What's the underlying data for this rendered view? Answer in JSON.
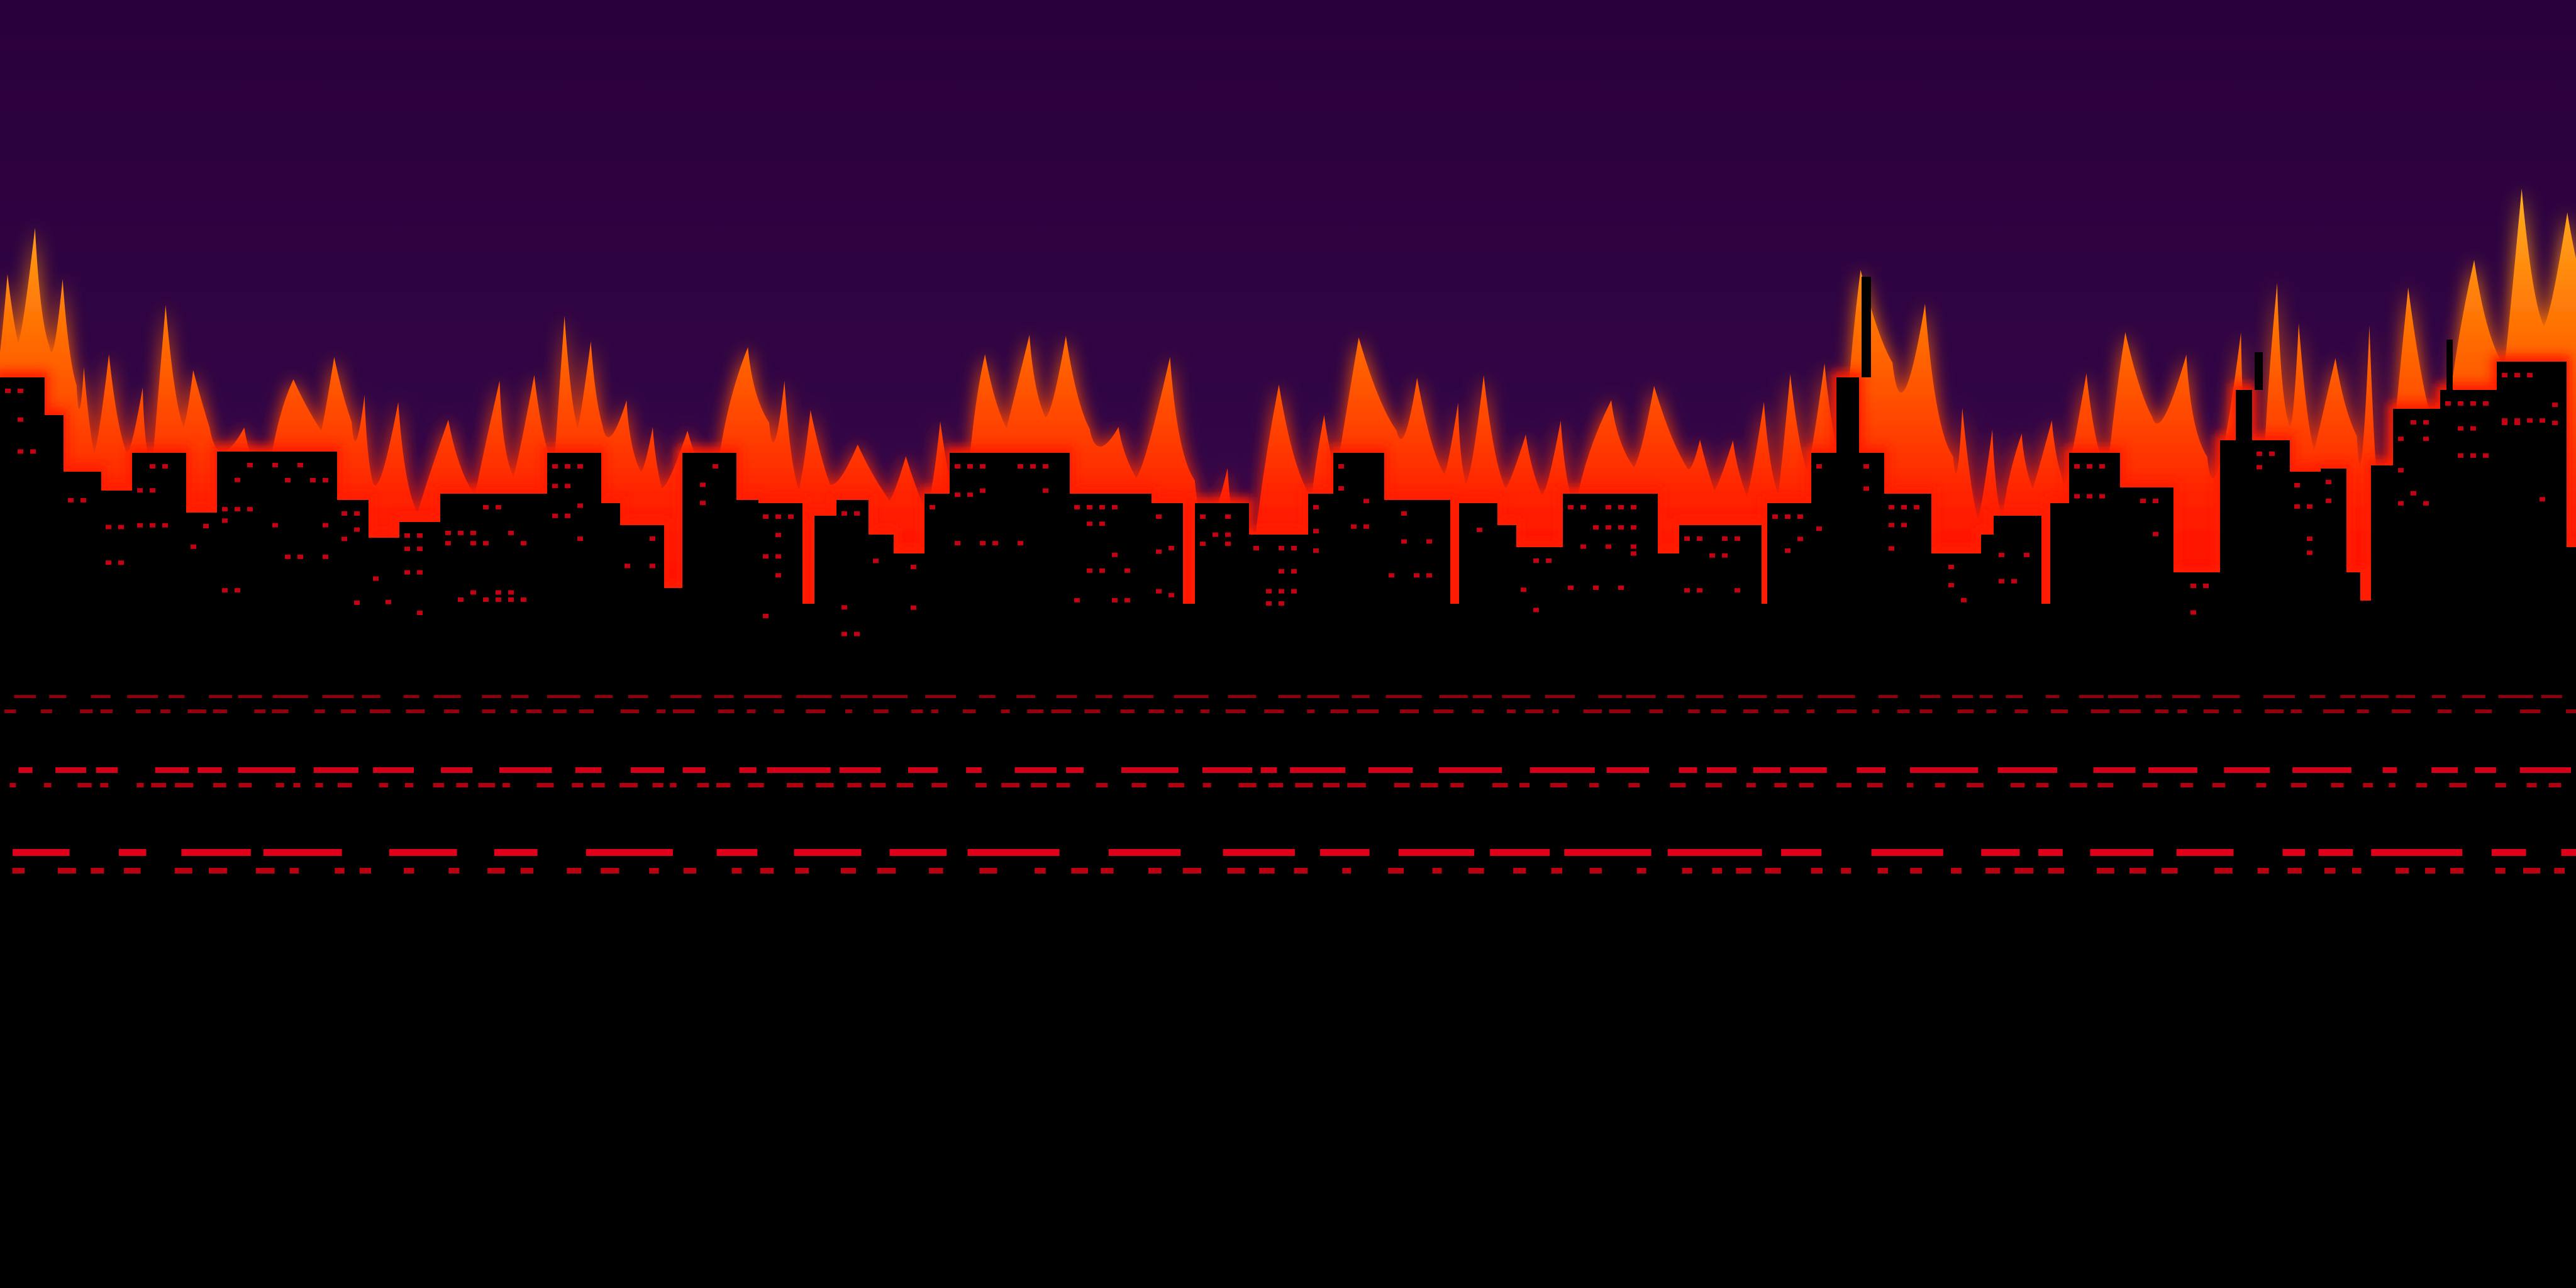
{
  "scene": {
    "kind": "burning-city-skyline-background",
    "has_text": false
  },
  "colors": {
    "sky_top": "#2a0038",
    "sky_bottom": "#4a0a5c",
    "fire_core": "#ff2a00",
    "fire_mid": "#ff5a00",
    "fire_tip": "#ff9a10",
    "fire_glow": "#ff1a00",
    "silhouette": "#000000",
    "window_light": "#c40012",
    "window_light_bright": "#e0001a",
    "ground": "#000000"
  }
}
